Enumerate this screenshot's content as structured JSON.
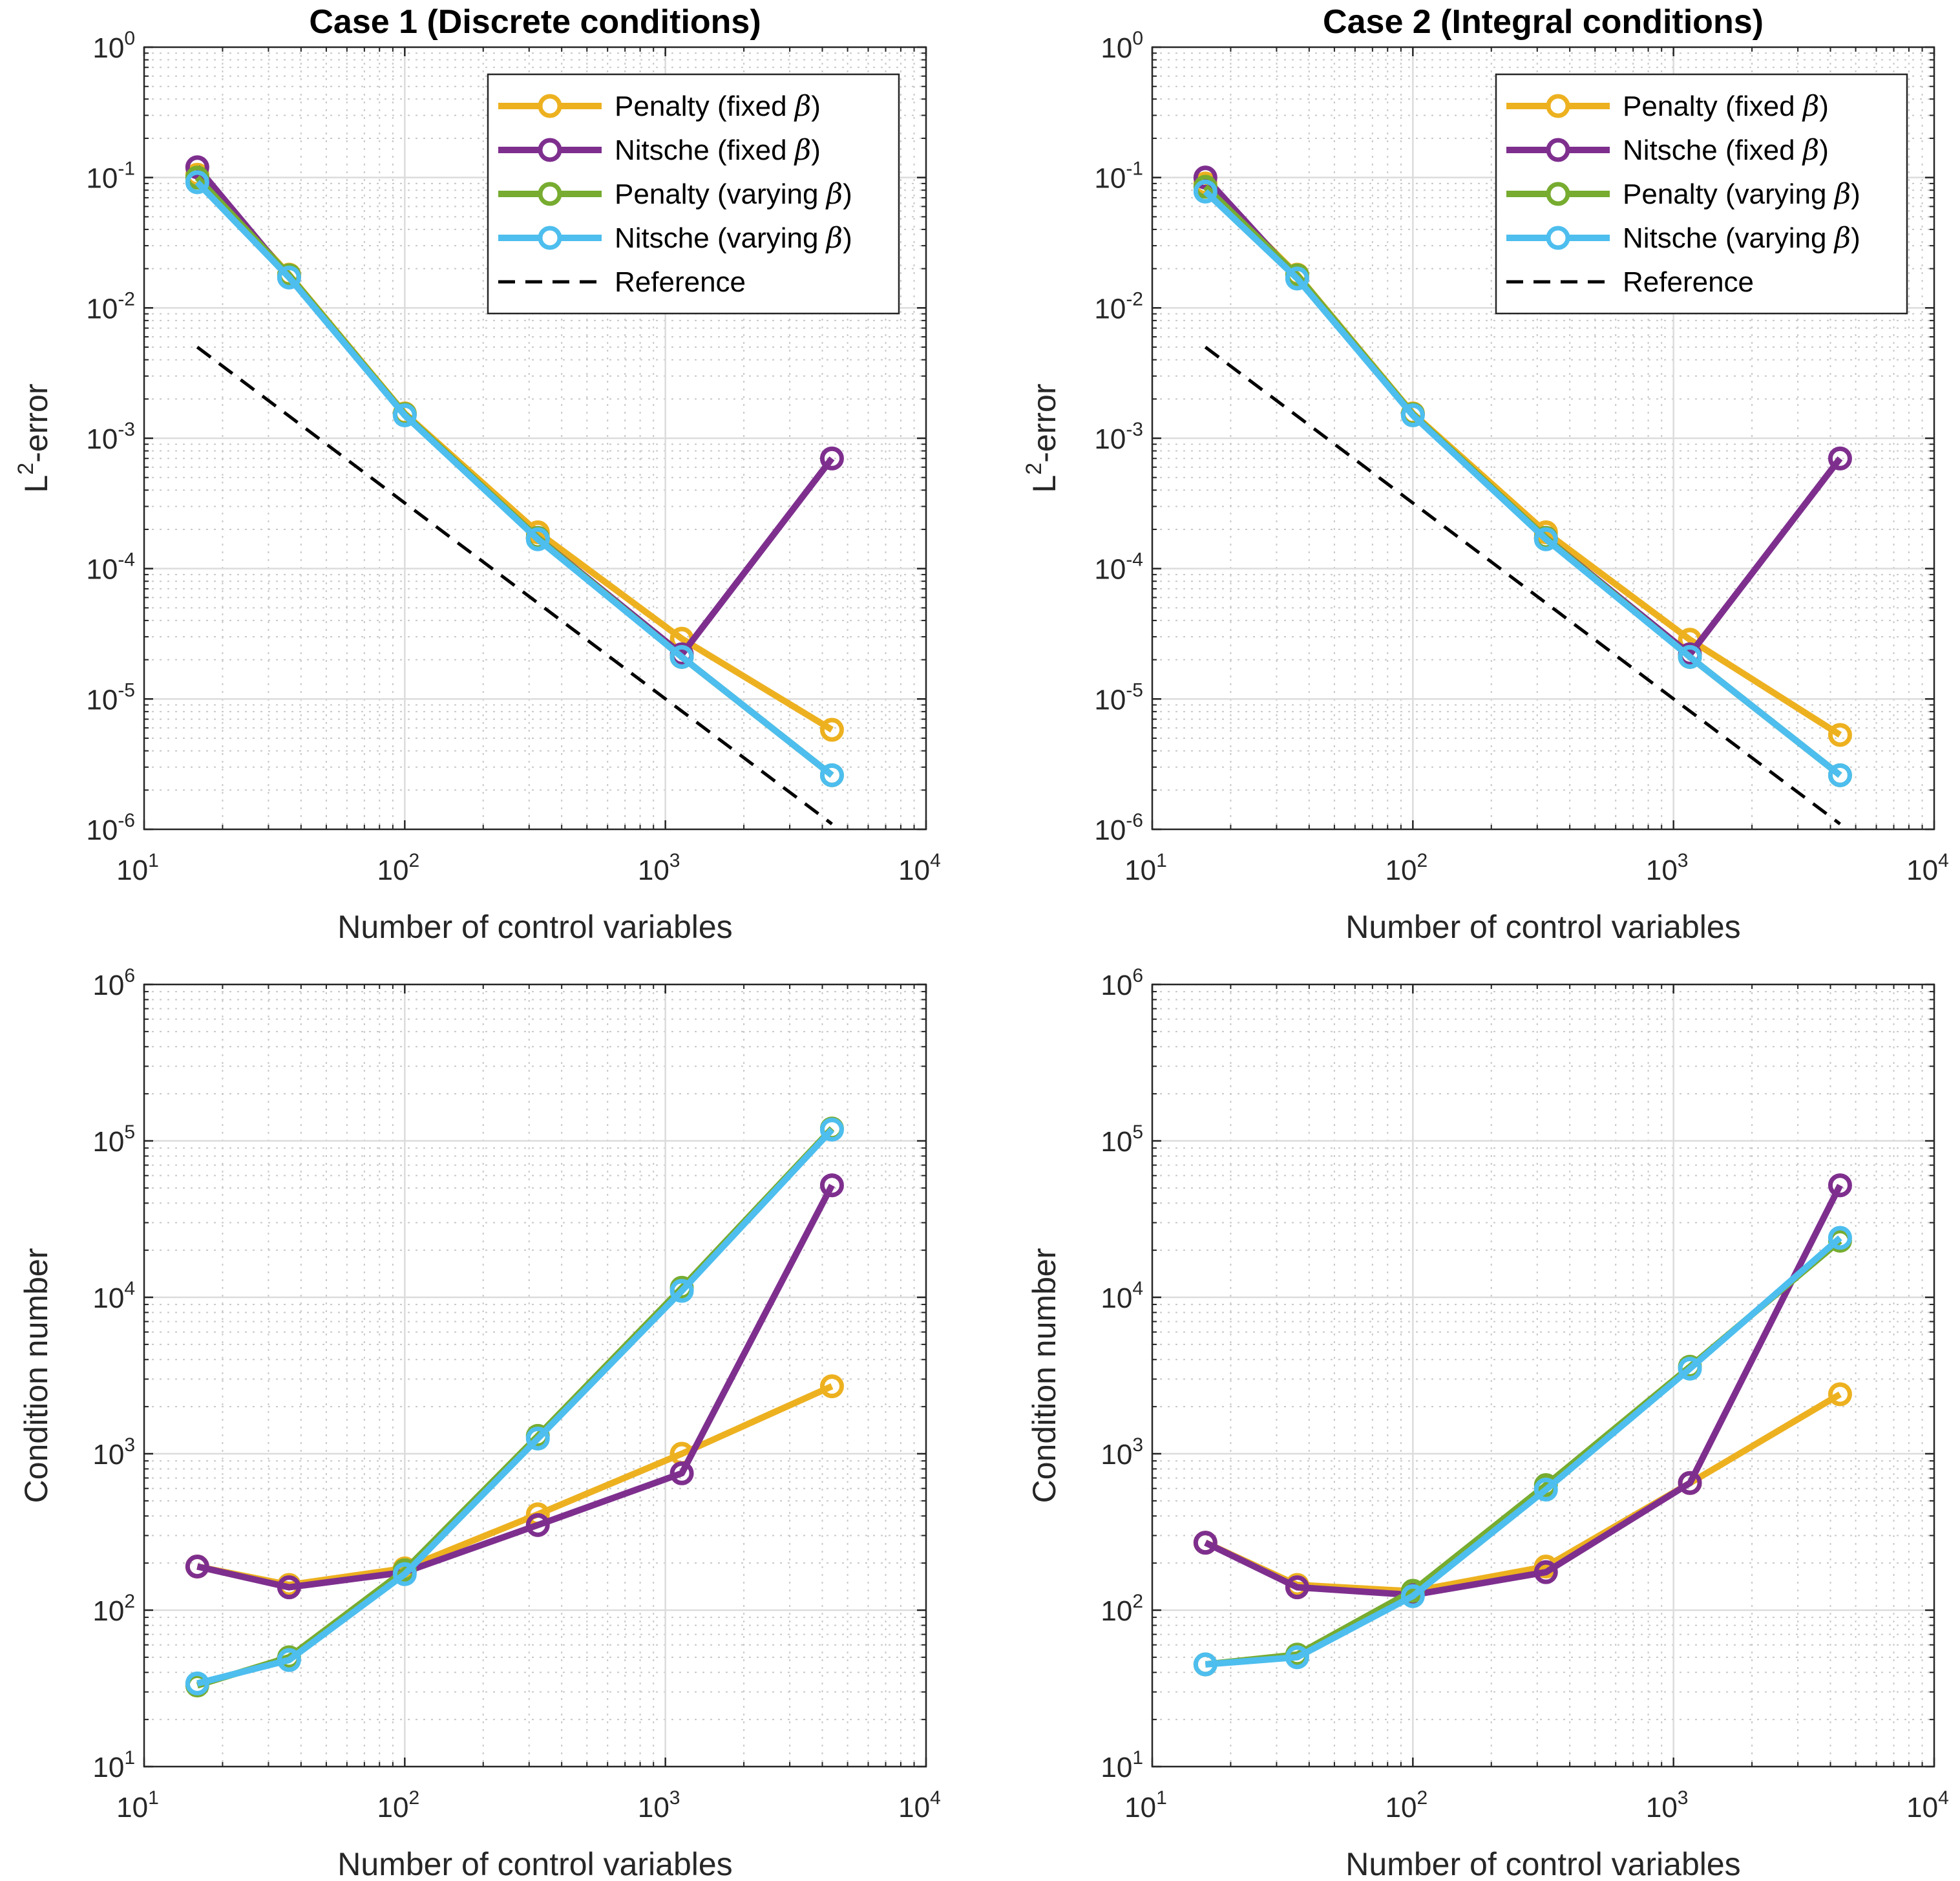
{
  "chart_data": [
    {
      "id": "ax1",
      "type": "line",
      "title": "Case 1 (Discrete conditions)",
      "xlabel": "Number of control variables",
      "ylabel": "L2-error",
      "ylabel_base": "L",
      "ylabel_sup": "2",
      "ylabel_rest": "-error",
      "xscale": "log",
      "yscale": "log",
      "xlim": [
        10,
        10000
      ],
      "ylim": [
        1e-06,
        1
      ],
      "xtick_exps": [
        "1",
        "2",
        "3",
        "4"
      ],
      "ytick_exps": [
        "-6",
        "-5",
        "-4",
        "-3",
        "-2",
        "-1",
        "0"
      ],
      "tick_base": "10",
      "grid": true,
      "legend": "top-right",
      "x": [
        16,
        36,
        100,
        324,
        1156,
        4356
      ],
      "series": [
        {
          "name": "Penalty (fixed β)",
          "label": "Penalty (fixed ",
          "symbol": "β",
          "close": ")",
          "color": "#EDB120",
          "values": [
            0.105,
            0.018,
            0.00155,
            0.00019,
            2.9e-05,
            5.8e-06
          ]
        },
        {
          "name": "Nitsche (fixed β)",
          "label": "Nitsche (fixed ",
          "symbol": "β",
          "close": ")",
          "color": "#7E2F8E",
          "values": [
            0.12,
            0.0172,
            0.00152,
            0.000172,
            2.2e-05,
            0.0007
          ]
        },
        {
          "name": "Penalty (varying β)",
          "label": "Penalty (varying ",
          "symbol": "β",
          "close": ")",
          "color": "#77AC30",
          "values": [
            0.1,
            0.0178,
            0.00153,
            0.000172,
            2.1e-05,
            2.6e-06
          ]
        },
        {
          "name": "Nitsche (varying β)",
          "label": "Nitsche (varying ",
          "symbol": "β",
          "close": ")",
          "color": "#4DBEEE",
          "values": [
            0.092,
            0.0171,
            0.0015,
            0.000168,
            2.1e-05,
            2.6e-06
          ]
        },
        {
          "name": "Reference",
          "label": "Reference",
          "color": "#000000",
          "dashed": true,
          "x": [
            16,
            4356
          ],
          "values": [
            0.005,
            1.1e-06
          ]
        }
      ]
    },
    {
      "id": "ax2",
      "type": "line",
      "title": "Case 2 (Integral conditions)",
      "xlabel": "Number of control variables",
      "ylabel": "L2-error",
      "ylabel_base": "L",
      "ylabel_sup": "2",
      "ylabel_rest": "-error",
      "xscale": "log",
      "yscale": "log",
      "xlim": [
        10,
        10000
      ],
      "ylim": [
        1e-06,
        1
      ],
      "xtick_exps": [
        "1",
        "2",
        "3",
        "4"
      ],
      "ytick_exps": [
        "-6",
        "-5",
        "-4",
        "-3",
        "-2",
        "-1",
        "0"
      ],
      "tick_base": "10",
      "grid": true,
      "legend": "top-right",
      "x": [
        16,
        36,
        100,
        324,
        1156,
        4356
      ],
      "series": [
        {
          "name": "Penalty (fixed β)",
          "label": "Penalty (fixed ",
          "symbol": "β",
          "close": ")",
          "color": "#EDB120",
          "values": [
            0.09,
            0.018,
            0.00155,
            0.00019,
            2.85e-05,
            5.3e-06
          ]
        },
        {
          "name": "Nitsche (fixed β)",
          "label": "Nitsche (fixed ",
          "symbol": "β",
          "close": ")",
          "color": "#7E2F8E",
          "values": [
            0.1,
            0.017,
            0.00152,
            0.000172,
            2.2e-05,
            0.0007
          ]
        },
        {
          "name": "Penalty (varying β)",
          "label": "Penalty (varying ",
          "symbol": "β",
          "close": ")",
          "color": "#77AC30",
          "values": [
            0.085,
            0.0178,
            0.00153,
            0.000172,
            2.1e-05,
            2.6e-06
          ]
        },
        {
          "name": "Nitsche (varying β)",
          "label": "Nitsche (varying ",
          "symbol": "β",
          "close": ")",
          "color": "#4DBEEE",
          "values": [
            0.078,
            0.0168,
            0.0015,
            0.000168,
            2.1e-05,
            2.6e-06
          ]
        },
        {
          "name": "Reference",
          "label": "Reference",
          "color": "#000000",
          "dashed": true,
          "x": [
            16,
            4356
          ],
          "values": [
            0.005,
            1.1e-06
          ]
        }
      ]
    },
    {
      "id": "ax3",
      "type": "line",
      "title": "",
      "xlabel": "Number of control variables",
      "ylabel": "Condition number",
      "xscale": "log",
      "yscale": "log",
      "xlim": [
        10,
        10000
      ],
      "ylim": [
        10,
        1000000
      ],
      "xtick_exps": [
        "1",
        "2",
        "3",
        "4"
      ],
      "ytick_exps": [
        "1",
        "2",
        "3",
        "4",
        "5",
        "6"
      ],
      "tick_base": "10",
      "grid": true,
      "x": [
        16,
        36,
        100,
        324,
        1156,
        4356
      ],
      "series": [
        {
          "name": "Penalty (fixed β)",
          "color": "#EDB120",
          "values": [
            190,
            145,
            185,
            410,
            1000,
            2700
          ]
        },
        {
          "name": "Nitsche (fixed β)",
          "color": "#7E2F8E",
          "values": [
            190,
            140,
            175,
            350,
            750,
            52000
          ]
        },
        {
          "name": "Penalty (varying β)",
          "color": "#77AC30",
          "values": [
            33,
            50,
            180,
            1300,
            11500,
            120000
          ]
        },
        {
          "name": "Nitsche (varying β)",
          "color": "#4DBEEE",
          "values": [
            34,
            48,
            170,
            1250,
            11000,
            118000
          ]
        }
      ]
    },
    {
      "id": "ax4",
      "type": "line",
      "title": "",
      "xlabel": "Number of control variables",
      "ylabel": "Condition number",
      "xscale": "log",
      "yscale": "log",
      "xlim": [
        10,
        10000
      ],
      "ylim": [
        10,
        1000000
      ],
      "xtick_exps": [
        "1",
        "2",
        "3",
        "4"
      ],
      "ytick_exps": [
        "1",
        "2",
        "3",
        "4",
        "5",
        "6"
      ],
      "tick_base": "10",
      "grid": true,
      "x": [
        16,
        36,
        100,
        324,
        1156,
        4356
      ],
      "series": [
        {
          "name": "Penalty (fixed β)",
          "color": "#EDB120",
          "values": [
            270,
            145,
            132,
            190,
            650,
            2400
          ]
        },
        {
          "name": "Nitsche (fixed β)",
          "color": "#7E2F8E",
          "values": [
            270,
            140,
            125,
            175,
            650,
            52000
          ]
        },
        {
          "name": "Penalty (varying β)",
          "color": "#77AC30",
          "values": [
            45,
            52,
            133,
            630,
            3600,
            23000
          ]
        },
        {
          "name": "Nitsche (varying β)",
          "color": "#4DBEEE",
          "values": [
            45,
            50,
            123,
            590,
            3500,
            24000
          ]
        }
      ]
    }
  ]
}
